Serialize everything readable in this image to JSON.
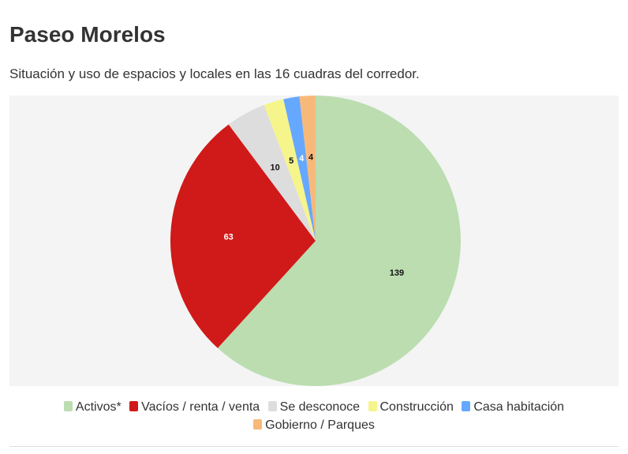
{
  "header": {
    "title": "Paseo Morelos",
    "subtitle": "Situación y uso de espacios y locales en las 16 cuadras del corredor."
  },
  "chart_data": {
    "type": "pie",
    "title": "Paseo Morelos",
    "subtitle": "Situación y uso de espacios y locales en las 16 cuadras del corredor.",
    "slices": [
      {
        "label": "Activos*",
        "value": 139,
        "color": "#bbddb0"
      },
      {
        "label": "Vacíos / renta / venta",
        "value": 63,
        "color": "#d01919"
      },
      {
        "label": "Se desconoce",
        "value": 10,
        "color": "#dddddd"
      },
      {
        "label": "Construcción",
        "value": 5,
        "color": "#f5f58c"
      },
      {
        "label": "Casa habitación",
        "value": 4,
        "color": "#66a8ff"
      },
      {
        "label": "Gobierno / Parques",
        "value": 4,
        "color": "#f7b97a"
      }
    ],
    "legend_position": "bottom"
  }
}
